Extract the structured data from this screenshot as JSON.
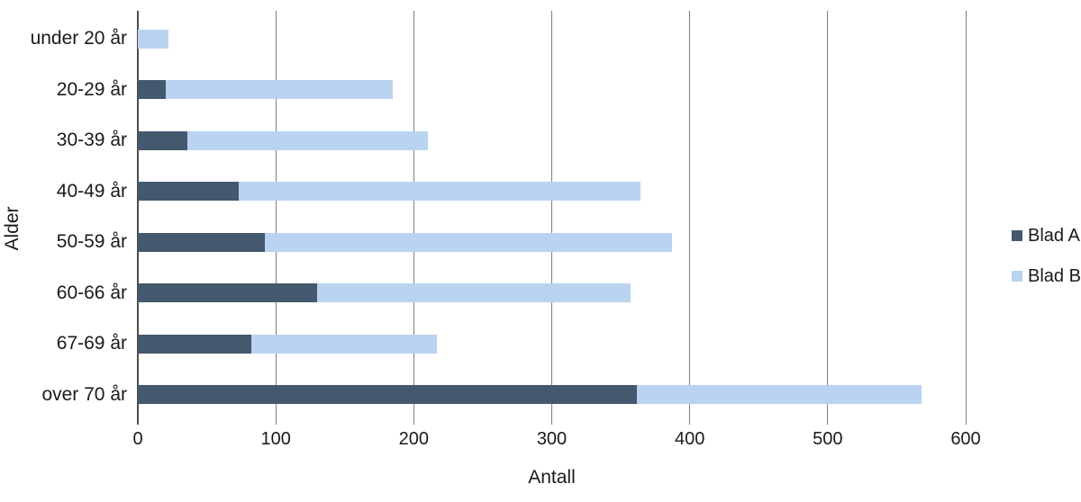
{
  "chart_data": {
    "type": "bar",
    "orientation": "horizontal",
    "stacked": true,
    "title": "",
    "xlabel": "Antall",
    "ylabel": "Alder",
    "categories": [
      "under 20 år",
      "20-29 år",
      "30-39 år",
      "40-49 år",
      "50-59 år",
      "60-66 år",
      "67-69 år",
      "over 70 år"
    ],
    "series": [
      {
        "name": "Blad A",
        "color": "#44586E",
        "values": [
          0,
          20,
          36,
          73,
          92,
          130,
          82,
          362
        ]
      },
      {
        "name": "Blad B",
        "color": "#B9D3F0",
        "values": [
          22,
          165,
          174,
          291,
          295,
          227,
          135,
          206
        ]
      }
    ],
    "totals": [
      22,
      185,
      210,
      364,
      387,
      357,
      217,
      568
    ],
    "xlim": [
      0,
      600
    ],
    "xticks": [
      0,
      100,
      200,
      300,
      400,
      500,
      600
    ],
    "grid": true,
    "legend_position": "right",
    "colors": {
      "gridline": "#7f7f7f",
      "zero_axis": "#4d4d4d",
      "text": "#1a1a1a",
      "background": "#ffffff"
    }
  }
}
